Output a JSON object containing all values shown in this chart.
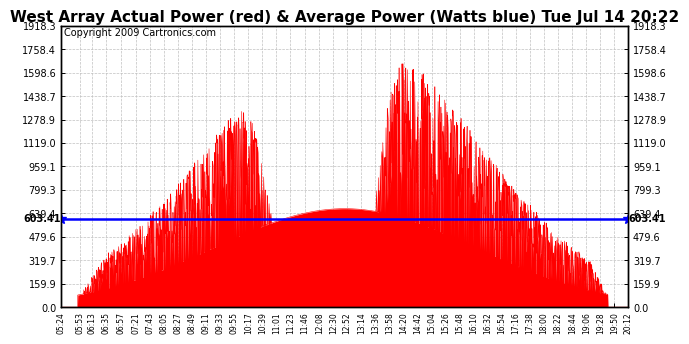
{
  "title": "West Array Actual Power (red) & Average Power (Watts blue) Tue Jul 14 20:22",
  "copyright": "Copyright 2009 Cartronics.com",
  "avg_power": 603.41,
  "ymax": 1918.3,
  "ymin": 0.0,
  "yticks": [
    0.0,
    159.9,
    319.7,
    479.6,
    639.4,
    799.3,
    959.1,
    1119.0,
    1278.9,
    1438.7,
    1598.6,
    1758.4,
    1918.3
  ],
  "xtick_labels": [
    "05:24",
    "05:53",
    "06:13",
    "06:35",
    "06:57",
    "07:21",
    "07:43",
    "08:05",
    "08:27",
    "08:49",
    "09:11",
    "09:33",
    "09:55",
    "10:17",
    "10:39",
    "11:01",
    "11:23",
    "11:46",
    "12:08",
    "12:30",
    "12:52",
    "13:14",
    "13:36",
    "13:58",
    "14:20",
    "14:42",
    "15:04",
    "15:26",
    "15:48",
    "16:10",
    "16:32",
    "16:54",
    "17:16",
    "17:38",
    "18:00",
    "18:22",
    "18:44",
    "19:06",
    "19:28",
    "19:50",
    "20:12"
  ],
  "bg_color": "#ffffff",
  "bar_color": "#ff0000",
  "line_color": "#0000ff",
  "grid_color": "#c0c0c0",
  "title_fontsize": 11,
  "copyright_fontsize": 7
}
